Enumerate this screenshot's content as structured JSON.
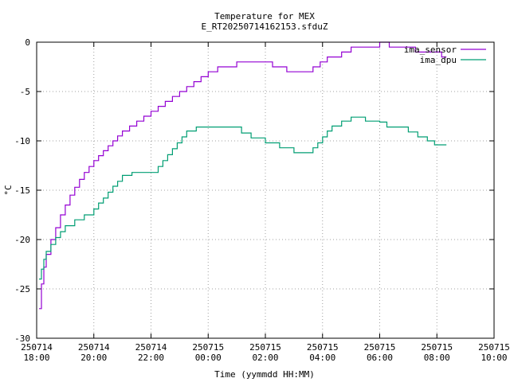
{
  "chart_data": {
    "type": "line",
    "title": "Temperature for MEX",
    "subtitle": "E_RT20250714162153.sfduZ",
    "xlabel": "Time (yymmdd HH:MM)",
    "ylabel": "°C",
    "xlim": [
      "2025-07-14 18:00",
      "2025-07-15 10:00"
    ],
    "ylim": [
      -30,
      0
    ],
    "grid": true,
    "legend_position": "top-right",
    "x_ticks": [
      {
        "date": "250714",
        "time": "18:00"
      },
      {
        "date": "250714",
        "time": "20:00"
      },
      {
        "date": "250714",
        "time": "22:00"
      },
      {
        "date": "250715",
        "time": "00:00"
      },
      {
        "date": "250715",
        "time": "02:00"
      },
      {
        "date": "250715",
        "time": "04:00"
      },
      {
        "date": "250715",
        "time": "06:00"
      },
      {
        "date": "250715",
        "time": "08:00"
      },
      {
        "date": "250715",
        "time": "10:00"
      }
    ],
    "y_ticks": [
      "0",
      "-5",
      "-10",
      "-15",
      "-20",
      "-25",
      "-30"
    ],
    "series": [
      {
        "name": "ima_sensor",
        "color": "#9400d3",
        "points": [
          [
            "2025-07-14 18:05",
            -27.0
          ],
          [
            "2025-07-14 18:10",
            -24.5
          ],
          [
            "2025-07-14 18:15",
            -22.8
          ],
          [
            "2025-07-14 18:20",
            -21.5
          ],
          [
            "2025-07-14 18:30",
            -20.0
          ],
          [
            "2025-07-14 18:40",
            -18.8
          ],
          [
            "2025-07-14 18:50",
            -17.5
          ],
          [
            "2025-07-14 19:00",
            -16.5
          ],
          [
            "2025-07-14 19:10",
            -15.5
          ],
          [
            "2025-07-14 19:20",
            -14.7
          ],
          [
            "2025-07-14 19:30",
            -13.9
          ],
          [
            "2025-07-14 19:40",
            -13.2
          ],
          [
            "2025-07-14 19:50",
            -12.6
          ],
          [
            "2025-07-14 20:00",
            -12.0
          ],
          [
            "2025-07-14 20:10",
            -11.5
          ],
          [
            "2025-07-14 20:20",
            -11.0
          ],
          [
            "2025-07-14 20:30",
            -10.5
          ],
          [
            "2025-07-14 20:40",
            -10.0
          ],
          [
            "2025-07-14 20:50",
            -9.5
          ],
          [
            "2025-07-14 21:00",
            -9.0
          ],
          [
            "2025-07-14 21:15",
            -8.5
          ],
          [
            "2025-07-14 21:30",
            -8.0
          ],
          [
            "2025-07-14 21:45",
            -7.5
          ],
          [
            "2025-07-14 22:00",
            -7.0
          ],
          [
            "2025-07-14 22:15",
            -6.5
          ],
          [
            "2025-07-14 22:30",
            -6.0
          ],
          [
            "2025-07-14 22:45",
            -5.5
          ],
          [
            "2025-07-14 23:00",
            -5.0
          ],
          [
            "2025-07-14 23:15",
            -4.5
          ],
          [
            "2025-07-14 23:30",
            -4.0
          ],
          [
            "2025-07-14 23:45",
            -3.5
          ],
          [
            "2025-07-15 00:00",
            -3.0
          ],
          [
            "2025-07-15 00:20",
            -2.5
          ],
          [
            "2025-07-15 01:00",
            -2.0
          ],
          [
            "2025-07-15 02:00",
            -2.0
          ],
          [
            "2025-07-15 02:15",
            -2.5
          ],
          [
            "2025-07-15 02:45",
            -3.0
          ],
          [
            "2025-07-15 03:30",
            -3.0
          ],
          [
            "2025-07-15 03:40",
            -2.5
          ],
          [
            "2025-07-15 03:55",
            -2.0
          ],
          [
            "2025-07-15 04:10",
            -1.5
          ],
          [
            "2025-07-15 04:40",
            -1.0
          ],
          [
            "2025-07-15 05:00",
            -0.5
          ],
          [
            "2025-07-15 05:40",
            -0.5
          ],
          [
            "2025-07-15 06:00",
            0.0
          ],
          [
            "2025-07-15 06:20",
            -0.5
          ],
          [
            "2025-07-15 07:00",
            -0.5
          ],
          [
            "2025-07-15 07:15",
            -1.0
          ],
          [
            "2025-07-15 08:00",
            -1.0
          ],
          [
            "2025-07-15 08:10",
            -1.5
          ],
          [
            "2025-07-15 08:20",
            -1.5
          ]
        ]
      },
      {
        "name": "ima_dpu",
        "color": "#009e73",
        "points": [
          [
            "2025-07-14 18:05",
            -24.0
          ],
          [
            "2025-07-14 18:10",
            -23.0
          ],
          [
            "2025-07-14 18:15",
            -22.0
          ],
          [
            "2025-07-14 18:20",
            -21.2
          ],
          [
            "2025-07-14 18:30",
            -20.5
          ],
          [
            "2025-07-14 18:40",
            -19.8
          ],
          [
            "2025-07-14 18:50",
            -19.2
          ],
          [
            "2025-07-14 19:00",
            -18.6
          ],
          [
            "2025-07-14 19:20",
            -18.0
          ],
          [
            "2025-07-14 19:40",
            -17.5
          ],
          [
            "2025-07-14 20:00",
            -16.9
          ],
          [
            "2025-07-14 20:10",
            -16.3
          ],
          [
            "2025-07-14 20:20",
            -15.8
          ],
          [
            "2025-07-14 20:30",
            -15.2
          ],
          [
            "2025-07-14 20:40",
            -14.6
          ],
          [
            "2025-07-14 20:50",
            -14.1
          ],
          [
            "2025-07-14 21:00",
            -13.5
          ],
          [
            "2025-07-14 21:20",
            -13.2
          ],
          [
            "2025-07-14 22:05",
            -13.2
          ],
          [
            "2025-07-14 22:15",
            -12.6
          ],
          [
            "2025-07-14 22:25",
            -12.0
          ],
          [
            "2025-07-14 22:35",
            -11.4
          ],
          [
            "2025-07-14 22:45",
            -10.8
          ],
          [
            "2025-07-14 22:55",
            -10.2
          ],
          [
            "2025-07-14 23:05",
            -9.6
          ],
          [
            "2025-07-14 23:15",
            -9.0
          ],
          [
            "2025-07-14 23:35",
            -8.6
          ],
          [
            "2025-07-15 01:00",
            -8.6
          ],
          [
            "2025-07-15 01:10",
            -9.2
          ],
          [
            "2025-07-15 01:30",
            -9.7
          ],
          [
            "2025-07-15 02:00",
            -10.2
          ],
          [
            "2025-07-15 02:30",
            -10.7
          ],
          [
            "2025-07-15 03:00",
            -11.2
          ],
          [
            "2025-07-15 03:30",
            -11.2
          ],
          [
            "2025-07-15 03:40",
            -10.7
          ],
          [
            "2025-07-15 03:50",
            -10.2
          ],
          [
            "2025-07-15 04:00",
            -9.6
          ],
          [
            "2025-07-15 04:10",
            -9.0
          ],
          [
            "2025-07-15 04:20",
            -8.5
          ],
          [
            "2025-07-15 04:40",
            -8.0
          ],
          [
            "2025-07-15 05:00",
            -7.6
          ],
          [
            "2025-07-15 05:20",
            -7.6
          ],
          [
            "2025-07-15 05:30",
            -8.0
          ],
          [
            "2025-07-15 06:00",
            -8.1
          ],
          [
            "2025-07-15 06:15",
            -8.6
          ],
          [
            "2025-07-15 06:40",
            -8.6
          ],
          [
            "2025-07-15 07:00",
            -9.1
          ],
          [
            "2025-07-15 07:20",
            -9.6
          ],
          [
            "2025-07-15 07:40",
            -10.0
          ],
          [
            "2025-07-15 07:55",
            -10.4
          ],
          [
            "2025-07-15 08:20",
            -10.4
          ]
        ]
      }
    ]
  }
}
